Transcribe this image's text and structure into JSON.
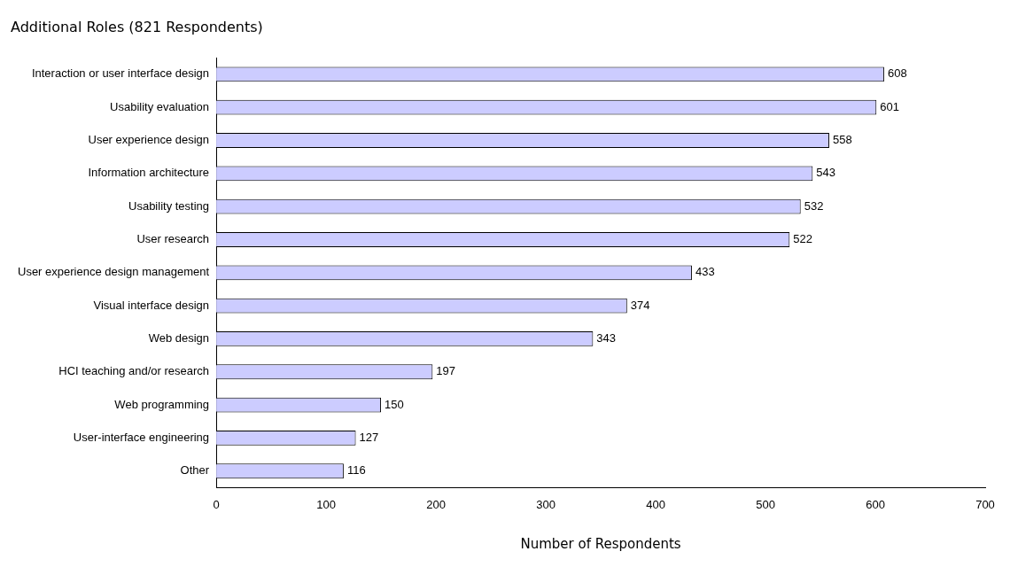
{
  "chart_data": {
    "type": "bar",
    "orientation": "horizontal",
    "title": "Additional Roles (821 Respondents)",
    "xlabel": "Number of Respondents",
    "categories": [
      "Interaction or user interface design",
      "Usability evaluation",
      "User experience design",
      "Information architecture",
      "Usability testing",
      "User research",
      "User experience design management",
      "Visual interface design",
      "Web design",
      "HCI teaching and/or research",
      "Web programming",
      "User-interface engineering",
      "Other"
    ],
    "values": [
      608,
      601,
      558,
      543,
      532,
      522,
      433,
      374,
      343,
      197,
      150,
      127,
      116
    ],
    "color": "#ccccff",
    "xlim": [
      0,
      700
    ],
    "xticks": [
      0,
      100,
      200,
      300,
      400,
      500,
      600,
      700
    ],
    "data_labels": true,
    "grid": false,
    "legend": false
  }
}
